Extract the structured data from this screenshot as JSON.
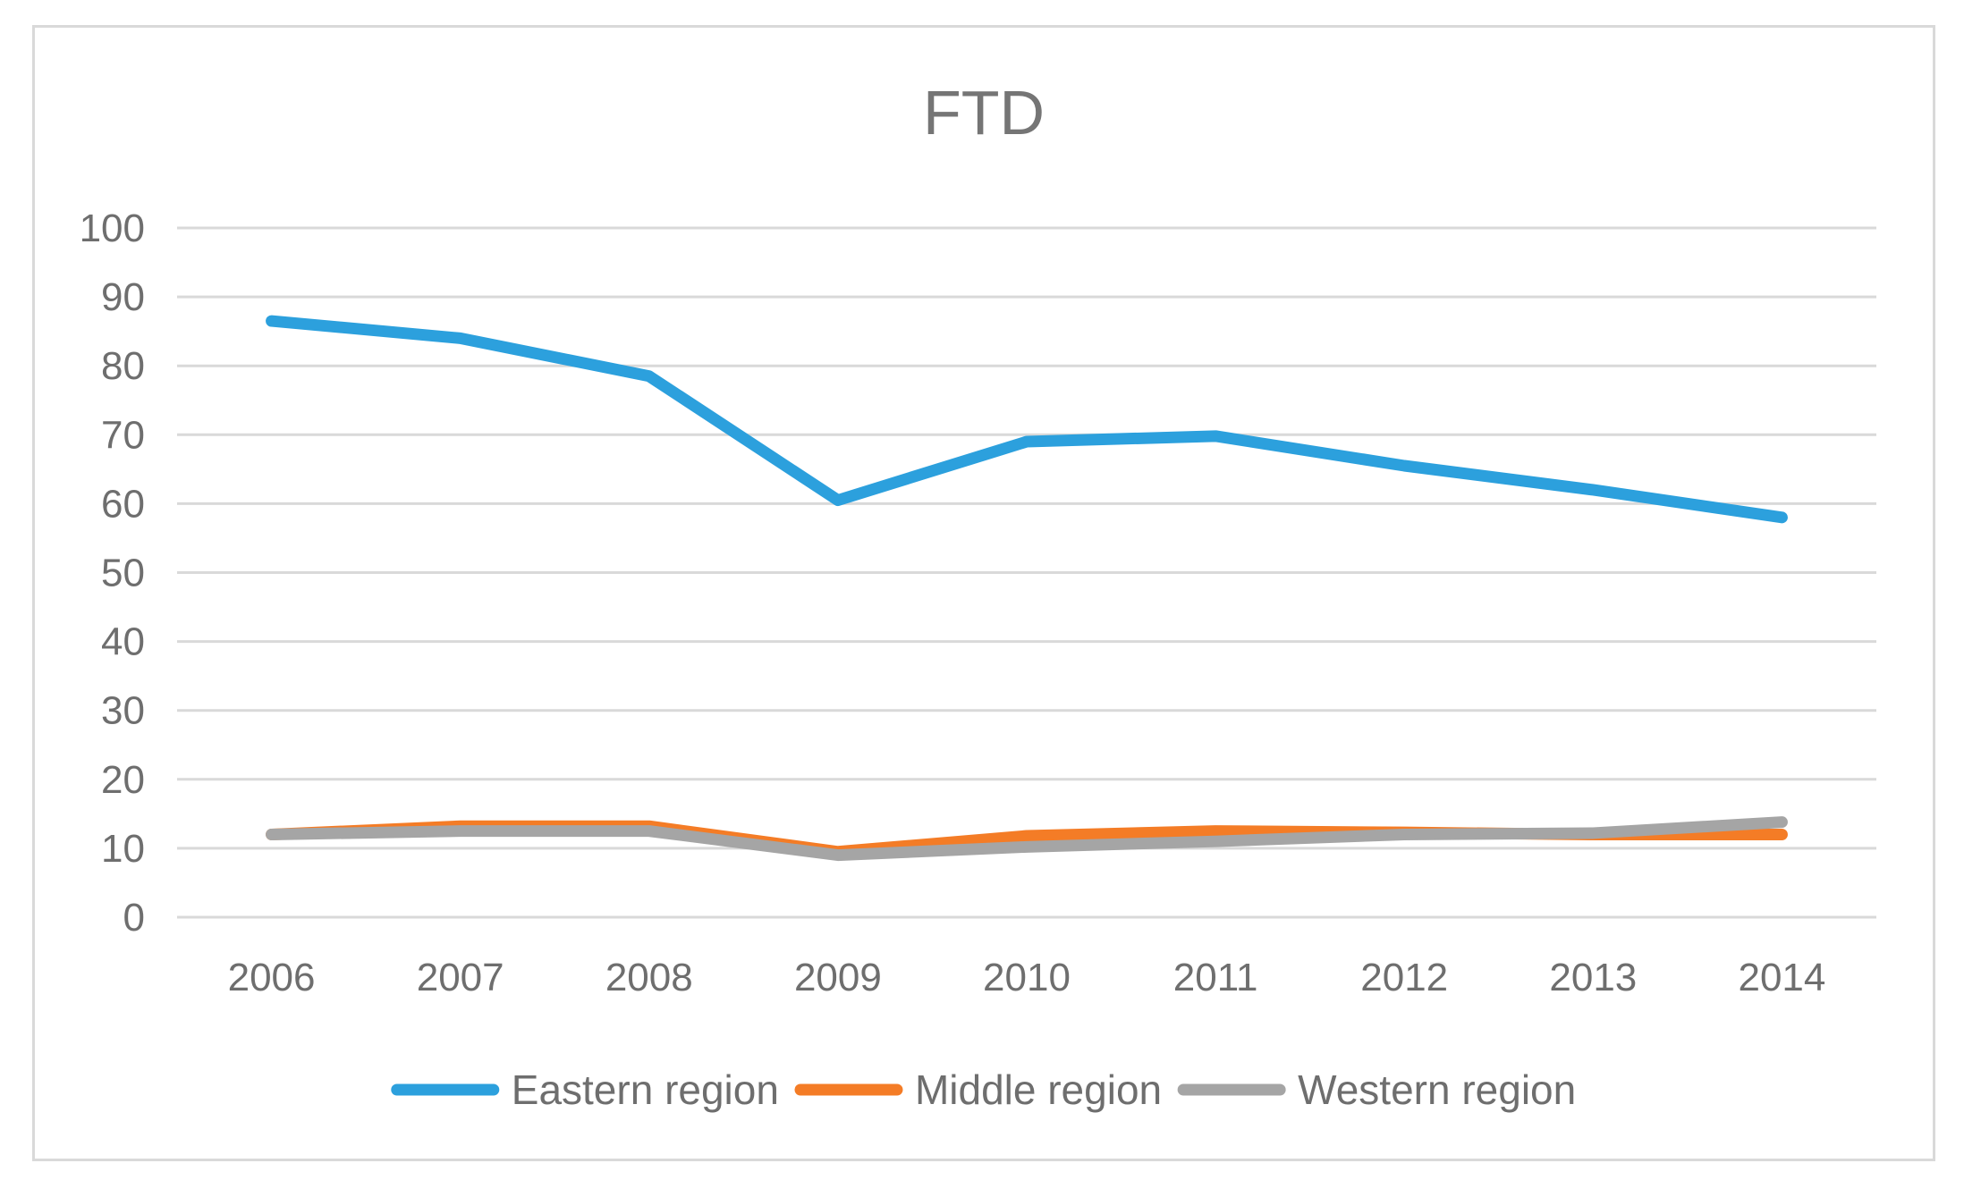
{
  "chart_data": {
    "type": "line",
    "title": "FTD",
    "xlabel": "",
    "ylabel": "",
    "categories": [
      "2006",
      "2007",
      "2008",
      "2009",
      "2010",
      "2011",
      "2012",
      "2013",
      "2014"
    ],
    "ylim": [
      0,
      100
    ],
    "yticks": [
      0,
      10,
      20,
      30,
      40,
      50,
      60,
      70,
      80,
      90,
      100
    ],
    "grid": true,
    "legend_position": "bottom",
    "series": [
      {
        "name": "Eastern region",
        "color": "#2ca0dd",
        "values": [
          86.5,
          84,
          78.5,
          60.5,
          69,
          69.8,
          65.5,
          62,
          58
        ]
      },
      {
        "name": "Middle region",
        "color": "#f47c26",
        "values": [
          12,
          13.2,
          13.2,
          9.5,
          11.8,
          12.5,
          12.3,
          12,
          12
        ]
      },
      {
        "name": "Western region",
        "color": "#a5a5a5",
        "values": [
          12,
          12.5,
          12.5,
          9,
          10.2,
          11,
          12,
          12.2,
          13.8
        ]
      }
    ]
  }
}
